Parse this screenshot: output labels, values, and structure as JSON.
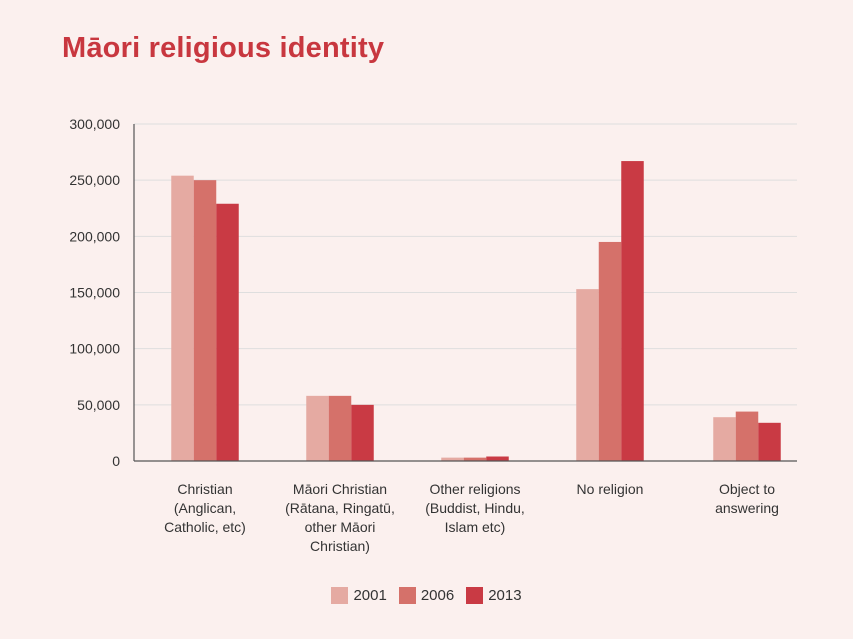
{
  "colors": {
    "background": "#fbf0ee",
    "title": "#c8373f",
    "grid": "#dedede",
    "axis": "#555555",
    "text": "#333333"
  },
  "chart_data": {
    "type": "bar",
    "title": "Māori religious identity",
    "xlabel": "",
    "ylabel": "",
    "ylim": [
      0,
      300000
    ],
    "yticks": [
      0,
      50000,
      100000,
      150000,
      200000,
      250000,
      300000
    ],
    "ytick_labels": [
      "0",
      "50,000",
      "100,000",
      "150,000",
      "200,000",
      "250,000",
      "300,000"
    ],
    "grid": true,
    "legend_position": "bottom-center",
    "categories": [
      [
        "Christian",
        "(Anglican,",
        "Catholic, etc)"
      ],
      [
        "Māori Christian",
        "(Rātana, Ringatū,",
        "other Māori",
        "Christian)"
      ],
      [
        "Other religions",
        "(Buddist, Hindu,",
        "Islam etc)"
      ],
      [
        "No religion"
      ],
      [
        "Object to",
        "answering"
      ]
    ],
    "series": [
      {
        "name": "2001",
        "color": "#e5aaa2",
        "values": [
          254000,
          58000,
          3000,
          153000,
          39000
        ]
      },
      {
        "name": "2006",
        "color": "#d5716a",
        "values": [
          250000,
          58000,
          3000,
          195000,
          44000
        ]
      },
      {
        "name": "2013",
        "color": "#c93a44",
        "values": [
          229000,
          50000,
          4000,
          267000,
          34000
        ]
      }
    ]
  }
}
